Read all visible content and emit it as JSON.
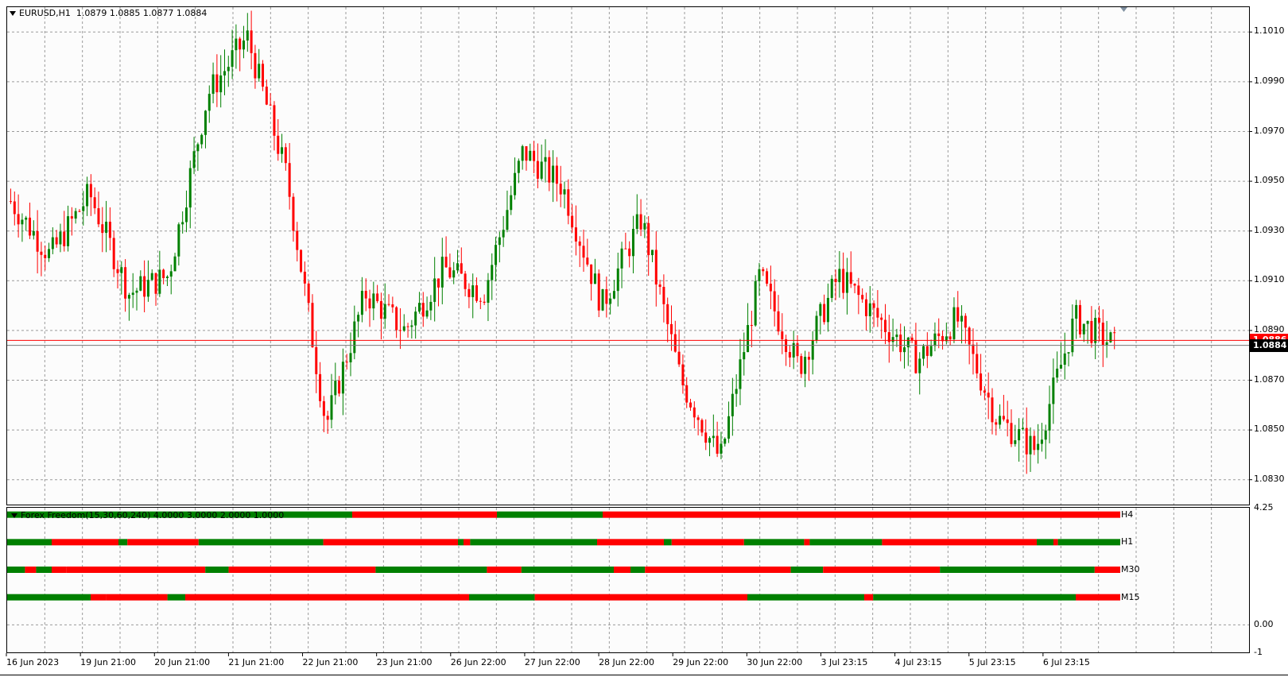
{
  "window": {
    "symbol_info": "EURUSD,H1  1.0879 1.0885 1.0877 1.0884",
    "indicator_info": "Forex Freedom(15,30,60,240) 4.0000 3.0000 2.0000 1.0000"
  },
  "colors": {
    "bull": "#008000",
    "bear": "#ff0000",
    "grid": "#9a9a9a",
    "bid_line": "#ff0000",
    "ask_line": "#777777",
    "tag_bg": "#000000",
    "tag_text": "#ffffff",
    "ask_tag_bg": "#ff0000"
  },
  "price_axis": {
    "labels": [
      "1.1010",
      "1.0990",
      "1.0970",
      "1.0950",
      "1.0930",
      "1.0910",
      "1.0890",
      "1.0870",
      "1.0850",
      "1.0830"
    ],
    "current_price": "1.0884",
    "ask_price": "1.0886"
  },
  "indicator_axis": {
    "labels": [
      "4.25",
      "0.00",
      "-1"
    ]
  },
  "timeframes": [
    "H4",
    "H1",
    "M30",
    "M15"
  ],
  "date_axis": [
    "16 Jun 2023",
    "19 Jun 21:00",
    "20 Jun 21:00",
    "21 Jun 21:00",
    "22 Jun 21:00",
    "23 Jun 21:00",
    "26 Jun 22:00",
    "27 Jun 22:00",
    "28 Jun 22:00",
    "29 Jun 22:00",
    "30 Jun 22:00",
    "3 Jul 23:15",
    "4 Jul 23:15",
    "5 Jul 23:15",
    "6 Jul 23:15"
  ],
  "chart_data": {
    "type": "candlestick",
    "symbol": "EURUSD",
    "timeframe": "H1",
    "ylim": [
      1.082,
      1.102
    ],
    "close_path": [
      {
        "t": "16 Jun 2023",
        "p": 1.0942
      },
      {
        "t": "19 Jun 21:00",
        "p": 1.092
      },
      {
        "t": "19 Jun 21:00",
        "p": 1.0945
      },
      {
        "t": "20 Jun 21:00",
        "p": 1.0905
      },
      {
        "t": "20 Jun 21:00",
        "p": 1.0912
      },
      {
        "t": "21 Jun 21:00",
        "p": 1.0985
      },
      {
        "t": "21 Jun 21:00",
        "p": 1.1008
      },
      {
        "t": "22 Jun 21:00",
        "p": 1.0952
      },
      {
        "t": "22 Jun 21:00",
        "p": 1.0852
      },
      {
        "t": "23 Jun 21:00",
        "p": 1.0905
      },
      {
        "t": "23 Jun 21:00",
        "p": 1.089
      },
      {
        "t": "26 Jun 22:00",
        "p": 1.0915
      },
      {
        "t": "26 Jun 22:00",
        "p": 1.0905
      },
      {
        "t": "27 Jun 22:00",
        "p": 1.0962
      },
      {
        "t": "27 Jun 22:00",
        "p": 1.0948
      },
      {
        "t": "28 Jun 22:00",
        "p": 1.09
      },
      {
        "t": "28 Jun 22:00",
        "p": 1.0935
      },
      {
        "t": "29 Jun 22:00",
        "p": 1.087
      },
      {
        "t": "29 Jun 22:00",
        "p": 1.0838
      },
      {
        "t": "30 Jun 22:00",
        "p": 1.0912
      },
      {
        "t": "30 Jun 22:00",
        "p": 1.0875
      },
      {
        "t": "3 Jul 23:15",
        "p": 1.0912
      },
      {
        "t": "3 Jul 23:15",
        "p": 1.0895
      },
      {
        "t": "4 Jul 23:15",
        "p": 1.0878
      },
      {
        "t": "4 Jul 23:15",
        "p": 1.0895
      },
      {
        "t": "5 Jul 23:15",
        "p": 1.0855
      },
      {
        "t": "5 Jul 23:15",
        "p": 1.0842
      },
      {
        "t": "6 Jul 23:15",
        "p": 1.0895
      },
      {
        "t": "6 Jul 23:15",
        "p": 1.0884
      }
    ],
    "indicator": {
      "name": "Forex Freedom",
      "rows": [
        {
          "label": "H4",
          "value": 4,
          "segments": [
            {
              "from": 0,
              "to": 0.31,
              "c": "g"
            },
            {
              "from": 0.31,
              "to": 0.44,
              "c": "r"
            },
            {
              "from": 0.44,
              "to": 0.535,
              "c": "g"
            },
            {
              "from": 0.535,
              "to": 1,
              "c": "r"
            }
          ]
        },
        {
          "label": "H1",
          "value": 3,
          "segments": [
            {
              "from": 0,
              "to": 0.04,
              "c": "g"
            },
            {
              "from": 0.04,
              "to": 0.1,
              "c": "r"
            },
            {
              "from": 0.1,
              "to": 0.108,
              "c": "g"
            },
            {
              "from": 0.108,
              "to": 0.172,
              "c": "r"
            },
            {
              "from": 0.172,
              "to": 0.284,
              "c": "g"
            },
            {
              "from": 0.284,
              "to": 0.405,
              "c": "r"
            },
            {
              "from": 0.405,
              "to": 0.41,
              "c": "g"
            },
            {
              "from": 0.41,
              "to": 0.416,
              "c": "r"
            },
            {
              "from": 0.416,
              "to": 0.53,
              "c": "g"
            },
            {
              "from": 0.53,
              "to": 0.59,
              "c": "r"
            },
            {
              "from": 0.59,
              "to": 0.597,
              "c": "g"
            },
            {
              "from": 0.597,
              "to": 0.662,
              "c": "r"
            },
            {
              "from": 0.662,
              "to": 0.716,
              "c": "g"
            },
            {
              "from": 0.716,
              "to": 0.721,
              "c": "r"
            },
            {
              "from": 0.721,
              "to": 0.786,
              "c": "g"
            },
            {
              "from": 0.786,
              "to": 0.925,
              "c": "r"
            },
            {
              "from": 0.925,
              "to": 0.94,
              "c": "g"
            },
            {
              "from": 0.94,
              "to": 0.944,
              "c": "r"
            },
            {
              "from": 0.944,
              "to": 1,
              "c": "g"
            }
          ]
        },
        {
          "label": "M30",
          "value": 2,
          "segments": [
            {
              "from": 0,
              "to": 0.016,
              "c": "g"
            },
            {
              "from": 0.016,
              "to": 0.026,
              "c": "r"
            },
            {
              "from": 0.026,
              "to": 0.04,
              "c": "g"
            },
            {
              "from": 0.04,
              "to": 0.053,
              "c": "r"
            },
            {
              "from": 0.053,
              "to": 0.178,
              "c": "r"
            },
            {
              "from": 0.178,
              "to": 0.199,
              "c": "g"
            },
            {
              "from": 0.199,
              "to": 0.331,
              "c": "r"
            },
            {
              "from": 0.331,
              "to": 0.431,
              "c": "g"
            },
            {
              "from": 0.431,
              "to": 0.462,
              "c": "r"
            },
            {
              "from": 0.462,
              "to": 0.545,
              "c": "g"
            },
            {
              "from": 0.545,
              "to": 0.56,
              "c": "r"
            },
            {
              "from": 0.56,
              "to": 0.573,
              "c": "g"
            },
            {
              "from": 0.573,
              "to": 0.704,
              "c": "r"
            },
            {
              "from": 0.704,
              "to": 0.733,
              "c": "g"
            },
            {
              "from": 0.733,
              "to": 0.745,
              "c": "r"
            },
            {
              "from": 0.745,
              "to": 0.838,
              "c": "r"
            },
            {
              "from": 0.838,
              "to": 0.85,
              "c": "g"
            },
            {
              "from": 0.85,
              "to": 0.977,
              "c": "g"
            },
            {
              "from": 0.977,
              "to": 1,
              "c": "r"
            }
          ]
        },
        {
          "label": "M15",
          "value": 1,
          "segments": [
            {
              "from": 0,
              "to": 0.075,
              "c": "g"
            },
            {
              "from": 0.075,
              "to": 0.089,
              "c": "r"
            },
            {
              "from": 0.089,
              "to": 0.144,
              "c": "r"
            },
            {
              "from": 0.144,
              "to": 0.16,
              "c": "g"
            },
            {
              "from": 0.16,
              "to": 0.24,
              "c": "r"
            },
            {
              "from": 0.24,
              "to": 0.415,
              "c": "r"
            },
            {
              "from": 0.415,
              "to": 0.474,
              "c": "g"
            },
            {
              "from": 0.474,
              "to": 0.49,
              "c": "r"
            },
            {
              "from": 0.49,
              "to": 0.665,
              "c": "r"
            },
            {
              "from": 0.665,
              "to": 0.77,
              "c": "g"
            },
            {
              "from": 0.77,
              "to": 0.778,
              "c": "r"
            },
            {
              "from": 0.778,
              "to": 0.96,
              "c": "g"
            },
            {
              "from": 0.96,
              "to": 1,
              "c": "r"
            }
          ]
        }
      ]
    }
  }
}
